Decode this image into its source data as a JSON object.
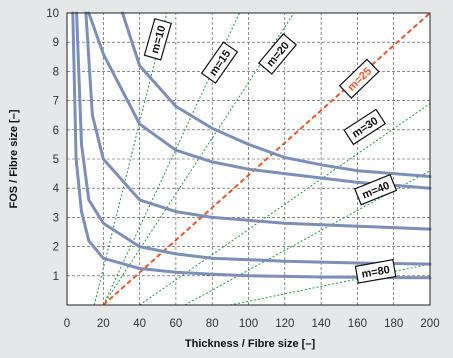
{
  "chart_data": {
    "type": "line",
    "xlabel": "Thickness / Fibre size [–]",
    "ylabel": "FOS / Fibre size [–]",
    "xlim": [
      0,
      200
    ],
    "ylim": [
      0,
      10
    ],
    "xticks": [
      "0",
      "20",
      "40",
      "60",
      "80",
      "100",
      "120",
      "140",
      "160",
      "180",
      "200"
    ],
    "yticks": [
      "1",
      "2",
      "3",
      "4",
      "5",
      "6",
      "7",
      "8",
      "9",
      "10"
    ],
    "grid": true,
    "colors": {
      "curves": "#7b8fb8",
      "rays": "#1f9b3a",
      "highlight": "#e8562a",
      "background": "#e6e7e8",
      "plot_bg": "#ffffff"
    },
    "curves": [
      {
        "name": "curve-1",
        "asymptote_x": 10,
        "points": [
          [
            12,
            10
          ],
          [
            20,
            8.6
          ],
          [
            40,
            6.2
          ],
          [
            60,
            5.3
          ],
          [
            80,
            4.9
          ],
          [
            100,
            4.65
          ],
          [
            120,
            4.5
          ],
          [
            140,
            4.35
          ],
          [
            160,
            4.2
          ],
          [
            180,
            4.1
          ],
          [
            200,
            4.0
          ]
        ]
      },
      {
        "name": "curve-2",
        "asymptote_x": 10,
        "points": [
          [
            10.4,
            10
          ],
          [
            14,
            6.5
          ],
          [
            20,
            5.0
          ],
          [
            40,
            3.6
          ],
          [
            60,
            3.2
          ],
          [
            80,
            3.0
          ],
          [
            100,
            2.9
          ],
          [
            120,
            2.8
          ],
          [
            140,
            2.75
          ],
          [
            160,
            2.7
          ],
          [
            180,
            2.65
          ],
          [
            200,
            2.6
          ]
        ]
      },
      {
        "name": "curve-3",
        "asymptote_x": 5,
        "points": [
          [
            5.3,
            10
          ],
          [
            8,
            5.5
          ],
          [
            12,
            3.6
          ],
          [
            20,
            2.8
          ],
          [
            40,
            2.0
          ],
          [
            60,
            1.75
          ],
          [
            80,
            1.6
          ],
          [
            100,
            1.55
          ],
          [
            120,
            1.5
          ],
          [
            140,
            1.47
          ],
          [
            160,
            1.44
          ],
          [
            180,
            1.42
          ],
          [
            200,
            1.4
          ]
        ]
      },
      {
        "name": "curve-4",
        "asymptote_x": 3,
        "points": [
          [
            3.2,
            10
          ],
          [
            5,
            5
          ],
          [
            8,
            3.2
          ],
          [
            12,
            2.2
          ],
          [
            20,
            1.6
          ],
          [
            40,
            1.25
          ],
          [
            60,
            1.12
          ],
          [
            80,
            1.05
          ],
          [
            100,
            1.0
          ],
          [
            120,
            0.98
          ],
          [
            140,
            0.96
          ],
          [
            160,
            0.95
          ],
          [
            180,
            0.94
          ],
          [
            200,
            0.93
          ]
        ]
      },
      {
        "name": "curve-5",
        "asymptote_x": 30,
        "points": [
          [
            30.6,
            10
          ],
          [
            40,
            8.2
          ],
          [
            60,
            6.8
          ],
          [
            80,
            6.05
          ],
          [
            100,
            5.5
          ],
          [
            120,
            5.05
          ],
          [
            140,
            4.8
          ],
          [
            160,
            4.6
          ],
          [
            180,
            4.5
          ],
          [
            200,
            4.4
          ]
        ]
      }
    ],
    "rays": [
      {
        "m": "m=10",
        "from": [
          15,
          0
        ],
        "to": [
          55,
          10
        ],
        "highlight": false
      },
      {
        "m": "m=15",
        "from": [
          20,
          0
        ],
        "to": [
          95,
          10
        ],
        "highlight": false
      },
      {
        "m": "m=20",
        "from": [
          20,
          0
        ],
        "to": [
          125,
          10
        ],
        "highlight": false
      },
      {
        "m": "m=25",
        "from": [
          20,
          0
        ],
        "to": [
          200,
          10
        ],
        "highlight": true
      },
      {
        "m": "m=30",
        "from": [
          40,
          0
        ],
        "to": [
          200,
          6.9
        ],
        "highlight": false
      },
      {
        "m": "m=40",
        "from": [
          65,
          0
        ],
        "to": [
          200,
          4.6
        ],
        "highlight": false
      },
      {
        "m": "m=80",
        "from": [
          90,
          0
        ],
        "to": [
          200,
          1.4
        ],
        "highlight": false
      }
    ],
    "labels": [
      {
        "text": "m=10",
        "x": 50,
        "y": 9.1,
        "angle": -74,
        "highlight": false
      },
      {
        "text": "m=15",
        "x": 84,
        "y": 8.3,
        "angle": -55,
        "highlight": false
      },
      {
        "text": "m=20",
        "x": 116,
        "y": 8.6,
        "angle": -50,
        "highlight": false
      },
      {
        "text": "m=25",
        "x": 161,
        "y": 7.75,
        "angle": -44,
        "highlight": true
      },
      {
        "text": "m=30",
        "x": 164,
        "y": 6.1,
        "angle": -33,
        "highlight": false
      },
      {
        "text": "m=40",
        "x": 170,
        "y": 3.95,
        "angle": -22,
        "highlight": false
      },
      {
        "text": "m=80",
        "x": 170,
        "y": 1.15,
        "angle": -10,
        "highlight": false
      }
    ]
  }
}
